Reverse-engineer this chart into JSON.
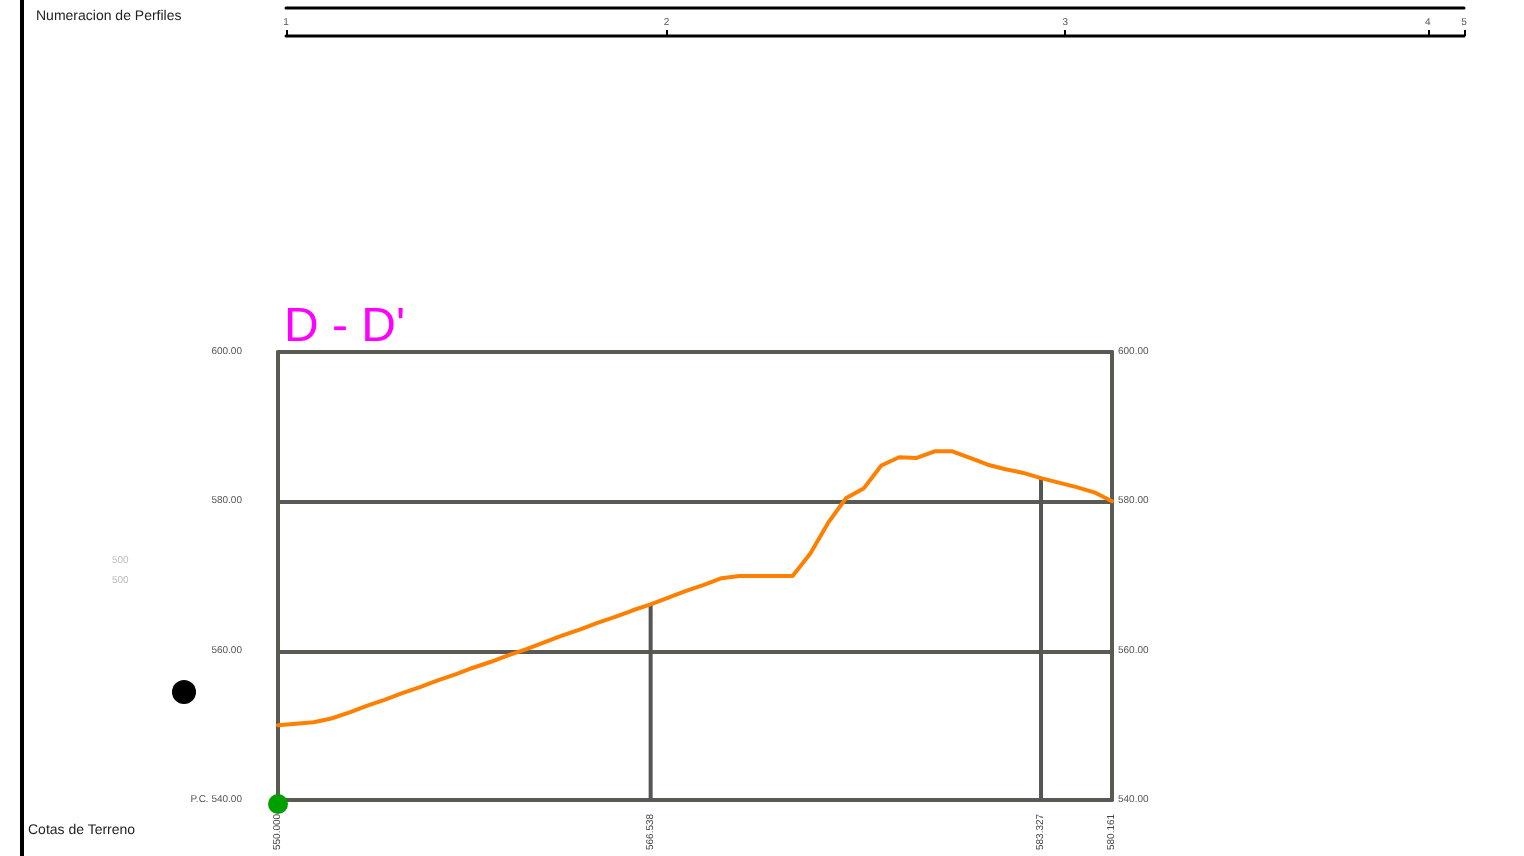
{
  "chart_data": [
    {
      "type": "line",
      "title": "D - D'",
      "ylim": [
        540,
        600
      ],
      "y2lim": [
        540,
        600
      ],
      "yticks": [
        {
          "value": 540,
          "label": "P.C. 540.00"
        },
        {
          "value": 560,
          "label": "560.00"
        },
        {
          "value": 580,
          "label": "580.00"
        },
        {
          "value": 600,
          "label": "600.00"
        }
      ],
      "y2ticks": [
        {
          "value": 540,
          "label": "540.00"
        },
        {
          "value": 560,
          "label": "560.00"
        },
        {
          "value": 580,
          "label": "580.00"
        },
        {
          "value": 600,
          "label": "600.00"
        }
      ],
      "categories": [
        "550.000",
        null,
        null,
        null,
        null,
        null,
        null,
        null,
        null,
        null,
        null,
        null,
        null,
        null,
        null,
        null,
        null,
        null,
        null,
        null,
        null,
        "566.538",
        null,
        null,
        null,
        null,
        null,
        null,
        null,
        null,
        null,
        null,
        null,
        null,
        null,
        null,
        null,
        null,
        null,
        null,
        null,
        null,
        null,
        "583.327",
        null,
        null,
        null,
        "580.161"
      ],
      "grid": "y",
      "marker": "none",
      "line_style": "solid",
      "annotations": [
        "Cotas de Terreno",
        "500",
        "500"
      ],
      "series": [
        {
          "type": "line",
          "color": "#ff8000",
          "values": [
            550,
            550.2,
            550.4,
            550.9,
            551.7,
            552.6,
            553.4,
            554.3,
            555.1,
            556,
            556.8,
            557.7,
            558.5,
            559.4,
            560.2,
            561.1,
            562,
            562.8,
            563.7,
            564.5,
            565.4,
            566.2,
            567.1,
            568,
            568.8,
            569.7,
            570,
            570,
            570,
            570,
            573,
            577.1,
            580.4,
            581.7,
            584.8,
            585.9,
            585.8,
            586.7,
            586.7,
            585.8,
            584.9,
            584.3,
            583.8,
            583.1,
            582.5,
            581.9,
            581.2,
            580
          ]
        },
        {
          "type": "bar",
          "color": "#555555",
          "values": [
            null,
            null,
            null,
            null,
            null,
            null,
            null,
            null,
            null,
            null,
            null,
            null,
            null,
            null,
            null,
            null,
            null,
            null,
            null,
            null,
            null,
            566.2,
            null,
            null,
            null,
            null,
            null,
            null,
            null,
            null,
            null,
            null,
            null,
            null,
            null,
            null,
            null,
            null,
            null,
            null,
            null,
            null,
            null,
            583.1,
            null,
            null,
            null,
            null
          ]
        }
      ]
    },
    {
      "type": "other",
      "xlabel": "Numeracion de Perfiles",
      "categories": [
        "1",
        null,
        null,
        null,
        null,
        null,
        null,
        null,
        null,
        null,
        null,
        null,
        null,
        null,
        null,
        null,
        null,
        null,
        null,
        null,
        null,
        "2",
        null,
        null,
        null,
        null,
        null,
        null,
        null,
        null,
        null,
        null,
        null,
        null,
        null,
        null,
        null,
        null,
        null,
        null,
        null,
        null,
        null,
        "3",
        null,
        null,
        null,
        null,
        null,
        null,
        null,
        null,
        null,
        null,
        null,
        null,
        null,
        null,
        null,
        null,
        null,
        null,
        null,
        "4",
        null,
        "5"
      ]
    }
  ]
}
